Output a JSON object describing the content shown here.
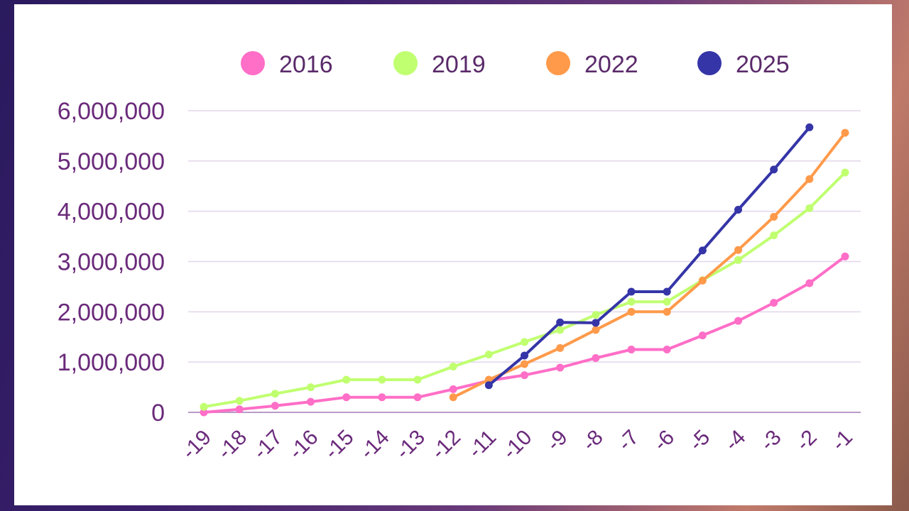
{
  "chart_data": {
    "type": "line",
    "x": [
      -19,
      -18,
      -17,
      -16,
      -15,
      -14,
      -13,
      -12,
      -11,
      -10,
      -9,
      -8,
      -7,
      -6,
      -5,
      -4,
      -3,
      -2,
      -1
    ],
    "x_tick_labels": [
      "-19",
      "-18",
      "-17",
      "-16",
      "-15",
      "-14",
      "-13",
      "-12",
      "-11",
      "-10",
      "-9",
      "-8",
      "-7",
      "-6",
      "-5",
      "-4",
      "-3",
      "-2",
      "-1"
    ],
    "ylim": [
      0,
      6000000
    ],
    "y_ticks": [
      0,
      1000000,
      2000000,
      3000000,
      4000000,
      5000000,
      6000000
    ],
    "y_tick_labels": [
      "0",
      "1,000,000",
      "2,000,000",
      "3,000,000",
      "4,000,000",
      "5,000,000",
      "6,000,000"
    ],
    "grid": true,
    "legend_position": "top",
    "series": [
      {
        "name": "2016",
        "color": "#ff6ec7",
        "values": [
          0,
          60000,
          130000,
          210000,
          300000,
          300000,
          300000,
          460000,
          630000,
          740000,
          890000,
          1080000,
          1250000,
          1250000,
          1530000,
          1820000,
          2180000,
          2570000,
          3100000
        ]
      },
      {
        "name": "2019",
        "color": "#c0ff70",
        "values": [
          110000,
          230000,
          370000,
          500000,
          650000,
          650000,
          650000,
          910000,
          1150000,
          1400000,
          1640000,
          1940000,
          2200000,
          2200000,
          2630000,
          3030000,
          3520000,
          4060000,
          4770000
        ]
      },
      {
        "name": "2022",
        "color": "#ff9a4a",
        "values": [
          null,
          null,
          null,
          null,
          null,
          null,
          null,
          300000,
          650000,
          960000,
          1280000,
          1640000,
          2000000,
          2000000,
          2620000,
          3230000,
          3890000,
          4640000,
          5560000
        ]
      },
      {
        "name": "2025",
        "color": "#3535a8",
        "values": [
          null,
          null,
          null,
          null,
          null,
          null,
          null,
          null,
          540000,
          1130000,
          1790000,
          1780000,
          2400000,
          2400000,
          3220000,
          4030000,
          4830000,
          5670000,
          null
        ]
      }
    ]
  }
}
